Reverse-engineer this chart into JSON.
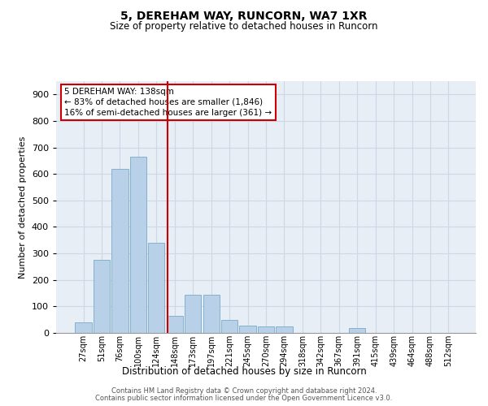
{
  "title_line1": "5, DEREHAM WAY, RUNCORN, WA7 1XR",
  "title_line2": "Size of property relative to detached houses in Runcorn",
  "xlabel": "Distribution of detached houses by size in Runcorn",
  "ylabel": "Number of detached properties",
  "categories": [
    "27sqm",
    "51sqm",
    "76sqm",
    "100sqm",
    "124sqm",
    "148sqm",
    "173sqm",
    "197sqm",
    "221sqm",
    "245sqm",
    "270sqm",
    "294sqm",
    "318sqm",
    "342sqm",
    "367sqm",
    "391sqm",
    "415sqm",
    "439sqm",
    "464sqm",
    "488sqm",
    "512sqm"
  ],
  "values": [
    40,
    275,
    620,
    665,
    340,
    65,
    145,
    145,
    50,
    28,
    25,
    25,
    0,
    0,
    0,
    18,
    0,
    0,
    0,
    0,
    0
  ],
  "bar_color": "#b8d0e8",
  "bar_edge_color": "#7aaac8",
  "grid_color": "#ccd8e8",
  "bg_color": "#e8eef5",
  "vline_x_idx": 4.62,
  "vline_color": "#cc0000",
  "annotation_text": "5 DEREHAM WAY: 138sqm\n← 83% of detached houses are smaller (1,846)\n16% of semi-detached houses are larger (361) →",
  "annotation_box_color": "white",
  "annotation_border_color": "#cc0000",
  "ylim": [
    0,
    950
  ],
  "yticks": [
    0,
    100,
    200,
    300,
    400,
    500,
    600,
    700,
    800,
    900
  ],
  "footer_line1": "Contains HM Land Registry data © Crown copyright and database right 2024.",
  "footer_line2": "Contains public sector information licensed under the Open Government Licence v3.0."
}
